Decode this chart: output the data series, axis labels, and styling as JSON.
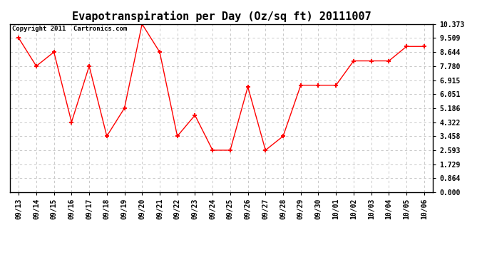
{
  "title": "Evapotranspiration per Day (Oz/sq ft) 20111007",
  "copyright_text": "Copyright 2011  Cartronics.com",
  "x_labels": [
    "09/13",
    "09/14",
    "09/15",
    "09/16",
    "09/17",
    "09/18",
    "09/19",
    "09/20",
    "09/21",
    "09/22",
    "09/23",
    "09/24",
    "09/25",
    "09/26",
    "09/27",
    "09/28",
    "09/29",
    "09/30",
    "10/01",
    "10/02",
    "10/03",
    "10/04",
    "10/05",
    "10/06"
  ],
  "y_values": [
    9.509,
    7.78,
    8.644,
    4.322,
    7.78,
    3.458,
    5.186,
    10.373,
    8.644,
    3.458,
    4.75,
    2.593,
    2.593,
    6.5,
    2.593,
    3.458,
    6.6,
    6.6,
    6.6,
    8.1,
    8.1,
    8.1,
    8.99,
    8.99
  ],
  "y_ticks": [
    0.0,
    0.864,
    1.729,
    2.593,
    3.458,
    4.322,
    5.186,
    6.051,
    6.915,
    7.78,
    8.644,
    9.509,
    10.373
  ],
  "line_color": "red",
  "marker": "+",
  "marker_size": 5,
  "background_color": "white",
  "grid_color": "#c0c0c0",
  "ylim": [
    0.0,
    10.373
  ],
  "title_fontsize": 11,
  "tick_fontsize": 7,
  "copyright_fontsize": 6.5,
  "figsize": [
    6.9,
    3.75
  ],
  "dpi": 100
}
